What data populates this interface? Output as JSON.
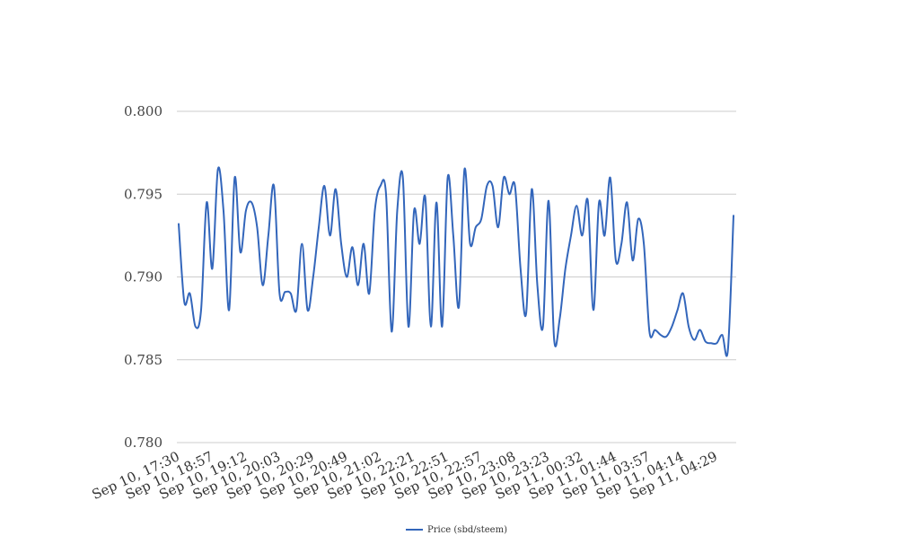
{
  "chart_data": {
    "type": "line",
    "title": "",
    "xlabel": "",
    "ylabel": "",
    "ylim": [
      0.78,
      0.8
    ],
    "yticks": [
      "0.800",
      "0.795",
      "0.790",
      "0.785",
      "0.780"
    ],
    "ytick_values": [
      0.8,
      0.795,
      0.79,
      0.785,
      0.78
    ],
    "grid": true,
    "legend_position": "bottom",
    "line_color": "#3366bb",
    "x_tick_labels": [
      "Sep 10, 17:30",
      "Sep 10, 18:57",
      "Sep 10, 19:12",
      "Sep 10, 20:03",
      "Sep 10, 20:29",
      "Sep 10, 20:49",
      "Sep 10, 21:02",
      "Sep 10, 22:21",
      "Sep 10, 22:51",
      "Sep 10, 22:57",
      "Sep 10, 23:08",
      "Sep 10, 23:23",
      "Sep 11, 00:32",
      "Sep 11, 01:44",
      "Sep 11, 03:57",
      "Sep 11, 04:14",
      "Sep 11, 04:29"
    ],
    "series": [
      {
        "name": "Price (sbd/steem)",
        "values": [
          0.7932,
          0.7885,
          0.789,
          0.787,
          0.788,
          0.7945,
          0.7905,
          0.7965,
          0.794,
          0.788,
          0.796,
          0.7915,
          0.794,
          0.7945,
          0.793,
          0.7895,
          0.7925,
          0.7955,
          0.789,
          0.7891,
          0.789,
          0.788,
          0.792,
          0.788,
          0.79,
          0.793,
          0.7955,
          0.7925,
          0.7953,
          0.792,
          0.79,
          0.7918,
          0.7895,
          0.792,
          0.789,
          0.794,
          0.7955,
          0.795,
          0.7867,
          0.794,
          0.796,
          0.787,
          0.794,
          0.792,
          0.7948,
          0.787,
          0.7945,
          0.787,
          0.796,
          0.7925,
          0.7882,
          0.7965,
          0.792,
          0.793,
          0.7935,
          0.7955,
          0.7955,
          0.793,
          0.796,
          0.795,
          0.7955,
          0.7905,
          0.7878,
          0.7953,
          0.7895,
          0.787,
          0.7946,
          0.7862,
          0.7875,
          0.7905,
          0.7925,
          0.7943,
          0.7925,
          0.7946,
          0.788,
          0.7945,
          0.7925,
          0.796,
          0.791,
          0.792,
          0.7945,
          0.791,
          0.7935,
          0.792,
          0.7867,
          0.7868,
          0.7865,
          0.7864,
          0.787,
          0.788,
          0.789,
          0.787,
          0.7862,
          0.7868,
          0.7861,
          0.786,
          0.786,
          0.7865,
          0.7856,
          0.7937
        ]
      }
    ]
  }
}
